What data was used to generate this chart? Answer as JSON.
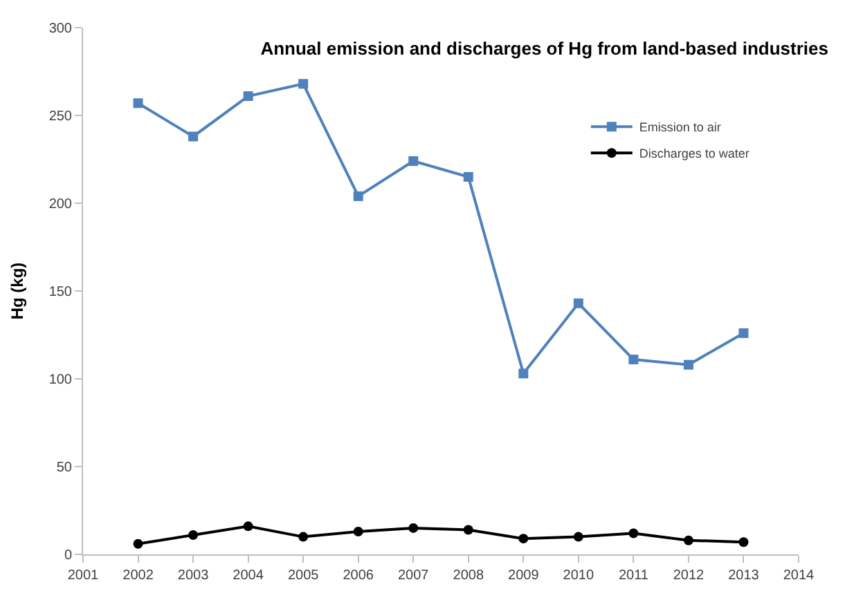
{
  "chart_data": {
    "type": "line",
    "title": "Annual emission and discharges of Hg from land-based industries",
    "ylabel": "Hg (kg)",
    "x": [
      2002,
      2003,
      2004,
      2005,
      2006,
      2007,
      2008,
      2009,
      2010,
      2011,
      2012,
      2013
    ],
    "series": [
      {
        "name": "Emission to air",
        "color": "#4f81bd",
        "marker": "square",
        "values": [
          257,
          238,
          261,
          268,
          204,
          224,
          215,
          103,
          143,
          111,
          108,
          126
        ]
      },
      {
        "name": "Discharges to water",
        "color": "#000000",
        "marker": "circle",
        "values": [
          6,
          11,
          16,
          10,
          13,
          15,
          14,
          9,
          10,
          12,
          8,
          7
        ]
      }
    ],
    "xlim": [
      2001,
      2014
    ],
    "xticks": [
      2001,
      2002,
      2003,
      2004,
      2005,
      2006,
      2007,
      2008,
      2009,
      2010,
      2011,
      2012,
      2013,
      2014
    ],
    "ylim": [
      0,
      300
    ],
    "yticks": [
      0,
      50,
      100,
      150,
      200,
      250,
      300
    ],
    "legend": "top right"
  }
}
